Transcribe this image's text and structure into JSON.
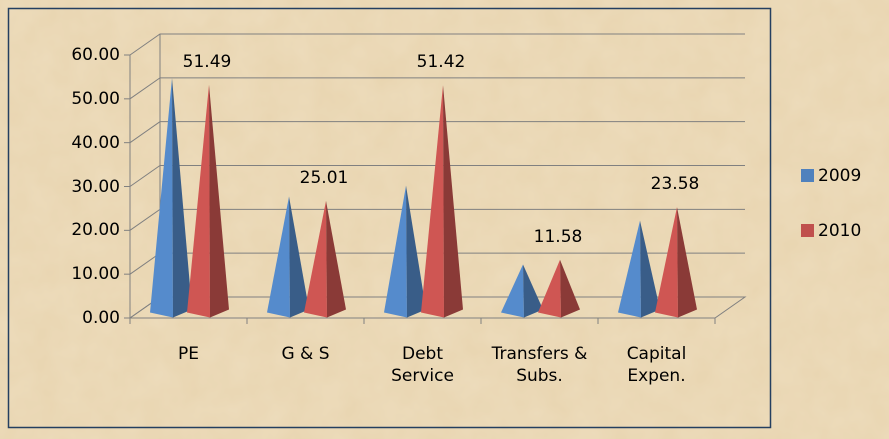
{
  "chart_data": {
    "type": "pyramid3d",
    "categories": [
      "PE",
      "G & S",
      "Debt Service",
      "Transfers & Subs.",
      "Capital Expen."
    ],
    "series": [
      {
        "name": "2009",
        "color": "#4f81bd",
        "values": [
          53,
          26,
          28.5,
          10.5,
          20.5
        ]
      },
      {
        "name": "2010",
        "color": "#c0504d",
        "values": [
          51.49,
          25.01,
          51.42,
          11.58,
          23.58
        ],
        "value_labels": [
          "51.49",
          "25.01",
          "51.42",
          "11.58",
          "23.58"
        ]
      }
    ],
    "ylim": [
      0,
      60
    ],
    "yticks": [
      {
        "value": 0,
        "label": "0.00"
      },
      {
        "value": 10,
        "label": "10.00"
      },
      {
        "value": 20,
        "label": "20.00"
      },
      {
        "value": 30,
        "label": "30.00"
      },
      {
        "value": 40,
        "label": "40.00"
      },
      {
        "value": 50,
        "label": "50.00"
      },
      {
        "value": 60,
        "label": "60.00"
      }
    ],
    "grid": true,
    "legend": "right"
  }
}
